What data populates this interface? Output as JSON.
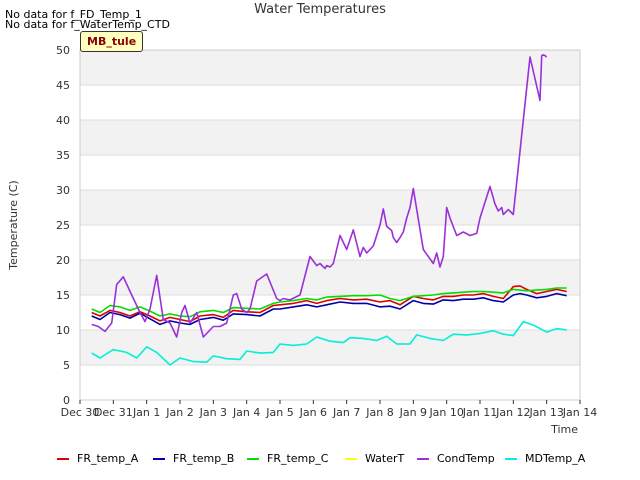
{
  "notes": [
    "No data for f_FD_Temp_1",
    "No data for f_WaterTemp_CTD"
  ],
  "site_label": "MB_tule",
  "chart_data": {
    "type": "line",
    "title": "Water Temperatures",
    "xlabel": "Time",
    "ylabel": "Temperature (C)",
    "x_tick_labels": [
      "Dec 30",
      "Dec 31",
      "Jan 1",
      "Jan 2",
      "Jan 3",
      "Jan 4",
      "Jan 5",
      "Jan 6",
      "Jan 7",
      "Jan 8",
      "Jan 9",
      "Jan 10",
      "Jan 11",
      "Jan 12",
      "Jan 13",
      "Jan 14"
    ],
    "x_tick_values": [
      0,
      1,
      2,
      3,
      4,
      5,
      6,
      7,
      8,
      9,
      10,
      11,
      12,
      13,
      14,
      15
    ],
    "xlim": [
      0,
      15
    ],
    "ylim": [
      0,
      50
    ],
    "yticks": [
      0,
      5,
      10,
      15,
      20,
      25,
      30,
      35,
      40,
      45,
      50
    ],
    "grid": true,
    "background_bands": true,
    "legend_position": "bottom",
    "series": [
      {
        "name": "FR_temp_A",
        "color": "#dd0000",
        "x": [
          0.35,
          0.6,
          0.9,
          1.2,
          1.5,
          1.8,
          2.1,
          2.4,
          2.7,
          3.0,
          3.3,
          3.6,
          4.0,
          4.3,
          4.6,
          5.0,
          5.4,
          5.8,
          6.0,
          6.4,
          6.8,
          7.1,
          7.4,
          7.8,
          8.2,
          8.6,
          9.0,
          9.3,
          9.6,
          10.0,
          10.3,
          10.6,
          10.9,
          11.2,
          11.5,
          11.8,
          12.1,
          12.4,
          12.7,
          13.0,
          13.2,
          13.4,
          13.7,
          14.0,
          14.3,
          14.6
        ],
        "values": [
          12.5,
          12.0,
          12.8,
          12.5,
          12.0,
          12.6,
          12.0,
          11.3,
          11.8,
          11.5,
          11.2,
          12.0,
          12.2,
          11.8,
          12.8,
          12.6,
          12.5,
          13.5,
          13.6,
          13.8,
          14.2,
          13.8,
          14.2,
          14.5,
          14.3,
          14.4,
          14.0,
          14.2,
          13.6,
          14.8,
          14.5,
          14.3,
          14.8,
          14.8,
          15.0,
          15.0,
          15.2,
          14.8,
          14.5,
          16.2,
          16.3,
          15.8,
          15.2,
          15.5,
          15.8,
          15.5
        ]
      },
      {
        "name": "FR_temp_B",
        "color": "#0000aa",
        "x": [
          0.35,
          0.6,
          0.9,
          1.2,
          1.5,
          1.8,
          2.1,
          2.4,
          2.7,
          3.0,
          3.3,
          3.6,
          4.0,
          4.3,
          4.6,
          5.0,
          5.4,
          5.8,
          6.0,
          6.4,
          6.8,
          7.1,
          7.4,
          7.8,
          8.2,
          8.6,
          9.0,
          9.3,
          9.6,
          10.0,
          10.3,
          10.6,
          10.9,
          11.2,
          11.5,
          11.8,
          12.1,
          12.4,
          12.7,
          13.0,
          13.2,
          13.4,
          13.7,
          14.0,
          14.3,
          14.6
        ],
        "values": [
          12.0,
          11.5,
          12.5,
          12.2,
          11.7,
          12.4,
          11.6,
          10.8,
          11.3,
          11.0,
          10.8,
          11.5,
          11.8,
          11.4,
          12.3,
          12.2,
          12.0,
          13.0,
          13.0,
          13.3,
          13.6,
          13.3,
          13.6,
          14.0,
          13.8,
          13.8,
          13.3,
          13.4,
          13.0,
          14.2,
          13.8,
          13.7,
          14.3,
          14.2,
          14.4,
          14.4,
          14.6,
          14.2,
          14.0,
          15.0,
          15.2,
          15.0,
          14.6,
          14.8,
          15.2,
          14.9
        ]
      },
      {
        "name": "FR_temp_C",
        "color": "#00dd00",
        "x": [
          0.35,
          0.6,
          0.9,
          1.2,
          1.5,
          1.8,
          2.1,
          2.4,
          2.7,
          3.0,
          3.3,
          3.6,
          4.0,
          4.3,
          4.6,
          5.0,
          5.4,
          5.8,
          6.0,
          6.4,
          6.8,
          7.1,
          7.4,
          7.8,
          8.2,
          8.6,
          9.0,
          9.3,
          9.6,
          10.0,
          10.3,
          10.6,
          10.9,
          11.2,
          11.5,
          11.8,
          12.1,
          12.4,
          12.7,
          13.0,
          13.2,
          13.4,
          13.7,
          14.0,
          14.3,
          14.6
        ],
        "values": [
          13.0,
          12.5,
          13.5,
          13.3,
          12.8,
          13.3,
          12.7,
          12.0,
          12.3,
          12.0,
          11.9,
          12.6,
          12.8,
          12.5,
          13.2,
          13.1,
          13.0,
          13.8,
          14.0,
          14.2,
          14.5,
          14.3,
          14.7,
          14.8,
          14.9,
          14.9,
          15.0,
          14.5,
          14.2,
          14.8,
          14.9,
          15.0,
          15.2,
          15.3,
          15.4,
          15.5,
          15.5,
          15.4,
          15.3,
          15.8,
          15.7,
          15.6,
          15.7,
          15.8,
          16.0,
          16.0
        ]
      },
      {
        "name": "WaterT",
        "color": "#ffff00",
        "x": [
          0.35,
          0.6,
          1.0,
          1.4,
          1.7,
          2.0,
          2.3,
          2.7,
          3.0,
          3.4,
          3.8,
          4.0,
          4.4,
          4.8,
          5.0,
          5.4,
          5.8,
          6.0,
          6.4,
          6.8,
          7.1,
          7.5,
          7.9,
          8.1,
          8.5,
          8.9,
          9.2,
          9.5,
          9.9,
          10.1,
          10.5,
          10.9,
          11.2,
          11.6,
          12.0,
          12.4,
          12.7,
          13.0,
          13.3,
          13.6,
          14.0,
          14.3,
          14.6
        ],
        "values": [
          6.7,
          6.0,
          7.2,
          6.8,
          6.0,
          7.6,
          6.8,
          5.0,
          6.0,
          5.5,
          5.4,
          6.3,
          5.9,
          5.8,
          7.0,
          6.7,
          6.8,
          8.0,
          7.8,
          8.0,
          9.0,
          8.4,
          8.2,
          8.9,
          8.8,
          8.5,
          9.1,
          8.0,
          8.0,
          9.3,
          8.8,
          8.5,
          9.4,
          9.3,
          9.5,
          9.9,
          9.4,
          9.2,
          11.2,
          10.7,
          9.7,
          10.2,
          10.0
        ]
      },
      {
        "name": "CondTemp",
        "color": "#9b30d9",
        "x": [
          0.35,
          0.55,
          0.75,
          0.95,
          1.1,
          1.3,
          1.55,
          1.8,
          1.95,
          2.1,
          2.3,
          2.5,
          2.7,
          2.9,
          3.05,
          3.15,
          3.3,
          3.5,
          3.7,
          3.9,
          4.0,
          4.2,
          4.4,
          4.6,
          4.7,
          4.85,
          5.0,
          5.1,
          5.3,
          5.6,
          5.9,
          6.0,
          6.1,
          6.3,
          6.6,
          6.9,
          7.1,
          7.2,
          7.35,
          7.4,
          7.5,
          7.6,
          7.8,
          8.0,
          8.2,
          8.4,
          8.5,
          8.6,
          8.8,
          9.0,
          9.1,
          9.2,
          9.35,
          9.4,
          9.5,
          9.6,
          9.7,
          9.8,
          9.9,
          10.0,
          10.3,
          10.6,
          10.7,
          10.8,
          10.9,
          11.0,
          11.1,
          11.3,
          11.5,
          11.7,
          11.9,
          12.0,
          12.3,
          12.45,
          12.55,
          12.65,
          12.7,
          12.85,
          13.0,
          13.3,
          13.5,
          13.8,
          13.85,
          13.9,
          13.95,
          14.0
        ],
        "values": [
          10.8,
          10.5,
          9.8,
          11.0,
          16.5,
          17.6,
          15.0,
          12.5,
          11.2,
          13.0,
          17.8,
          11.5,
          11.0,
          9.0,
          12.5,
          13.5,
          11.0,
          12.5,
          9.0,
          10.0,
          10.5,
          10.5,
          11.0,
          15.0,
          15.2,
          13.0,
          12.5,
          13.0,
          17.0,
          18.0,
          14.5,
          14.2,
          14.5,
          14.3,
          15.0,
          20.5,
          19.2,
          19.5,
          18.8,
          19.2,
          19.0,
          19.5,
          23.5,
          21.5,
          24.3,
          20.5,
          21.8,
          21.0,
          22.0,
          25.0,
          27.3,
          24.8,
          24.2,
          23.2,
          22.5,
          23.2,
          24.0,
          26.0,
          27.5,
          30.2,
          21.5,
          19.5,
          21.0,
          19.0,
          20.5,
          27.5,
          26.0,
          23.5,
          24.0,
          23.5,
          23.8,
          26.0,
          30.5,
          28.0,
          27.0,
          27.5,
          26.5,
          27.2,
          26.5,
          40.0,
          49.0,
          42.8,
          49.2,
          49.3,
          49.2,
          49.0
        ]
      },
      {
        "name": "MDTemp_A",
        "color": "#00eeee",
        "x": [
          0.35,
          0.6,
          1.0,
          1.4,
          1.7,
          2.0,
          2.3,
          2.7,
          3.0,
          3.4,
          3.8,
          4.0,
          4.4,
          4.8,
          5.0,
          5.4,
          5.8,
          6.0,
          6.4,
          6.8,
          7.1,
          7.5,
          7.9,
          8.1,
          8.5,
          8.9,
          9.2,
          9.5,
          9.9,
          10.1,
          10.5,
          10.9,
          11.2,
          11.6,
          12.0,
          12.4,
          12.7,
          13.0,
          13.3,
          13.6,
          14.0,
          14.3,
          14.6
        ],
        "values": [
          6.7,
          6.0,
          7.2,
          6.8,
          6.0,
          7.6,
          6.8,
          5.0,
          6.0,
          5.5,
          5.4,
          6.3,
          5.9,
          5.8,
          7.0,
          6.7,
          6.8,
          8.0,
          7.8,
          8.0,
          9.0,
          8.4,
          8.2,
          8.9,
          8.8,
          8.5,
          9.1,
          8.0,
          8.0,
          9.3,
          8.8,
          8.5,
          9.4,
          9.3,
          9.5,
          9.9,
          9.4,
          9.2,
          11.2,
          10.7,
          9.7,
          10.2,
          10.0
        ]
      }
    ]
  }
}
